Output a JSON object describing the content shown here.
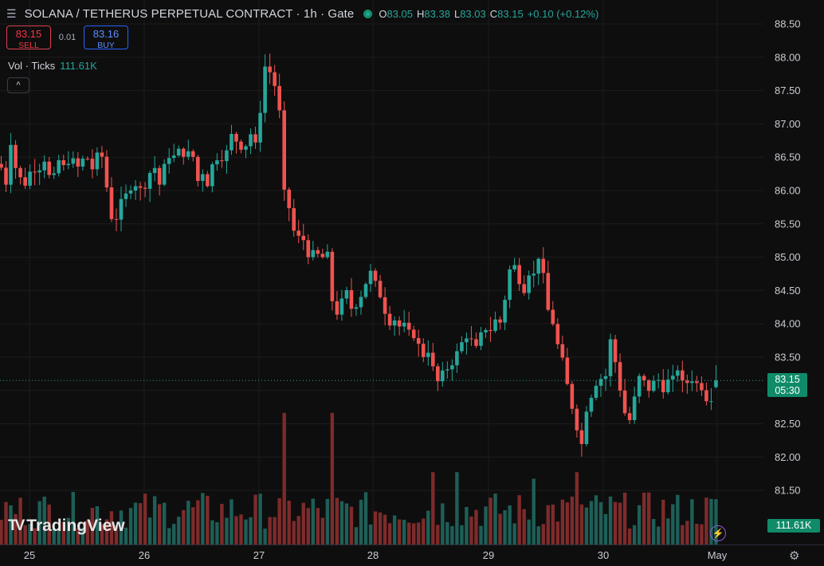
{
  "header": {
    "menu_icon": "menu-icon",
    "title": "SOLANA / TETHERUS PERPETUAL CONTRACT · 1h · Gate",
    "ohlc": [
      {
        "k": "O",
        "v": "83.05"
      },
      {
        "k": "H",
        "v": "83.38"
      },
      {
        "k": "L",
        "v": "83.03"
      },
      {
        "k": "C",
        "v": "83.15"
      }
    ],
    "change": "+0.10 (+0.12%)"
  },
  "trade": {
    "sell_price": "83.15",
    "sell_label": "SELL",
    "spread": "0.01",
    "buy_price": "83.16",
    "buy_label": "BUY"
  },
  "volume": {
    "label": "Vol · Ticks",
    "value": "111.61K"
  },
  "collapse_label": "^",
  "logo_text": "TradingView",
  "price_label": {
    "price": "83.15",
    "countdown": "05:30"
  },
  "volume_label": "111.61K",
  "colors": {
    "up": "#26a69a",
    "down": "#ef5350",
    "vol_up": "#1e5f57",
    "vol_down": "#7e2b2b",
    "background": "#0e0e0e",
    "grid": "#1c1c1c"
  },
  "chart_data": {
    "type": "candlestick",
    "interval": "1h",
    "y_ticks": [
      "88.50",
      "88.00",
      "87.50",
      "87.00",
      "86.50",
      "86.00",
      "85.50",
      "85.00",
      "84.50",
      "84.00",
      "83.50",
      "83.00",
      "82.50",
      "82.00",
      "81.50"
    ],
    "x_ticks": [
      "25",
      "26",
      "27",
      "28",
      "29",
      "30",
      "May"
    ],
    "ylim": [
      81.2,
      88.6
    ],
    "current_price": 83.15,
    "last_candle": {
      "o": 83.05,
      "h": 83.38,
      "l": 83.03,
      "c": 83.15
    },
    "close_path": [
      [
        0,
        86.4
      ],
      [
        8,
        86.1
      ],
      [
        12,
        86.85
      ],
      [
        18,
        86.4
      ],
      [
        24,
        86.2
      ],
      [
        32,
        86.1
      ],
      [
        40,
        86.35
      ],
      [
        48,
        86.3
      ],
      [
        55,
        86.5
      ],
      [
        62,
        86.2
      ],
      [
        70,
        86.2
      ],
      [
        76,
        86.6
      ],
      [
        82,
        86.2
      ],
      [
        88,
        86.6
      ],
      [
        95,
        86.3
      ],
      [
        101,
        86.4
      ],
      [
        108,
        86.55
      ],
      [
        115,
        86.3
      ],
      [
        121,
        86.5
      ],
      [
        127,
        86.6
      ],
      [
        131,
        86.2
      ],
      [
        136,
        85.95
      ],
      [
        140,
        85.6
      ],
      [
        145,
        85.55
      ],
      [
        151,
        85.8
      ],
      [
        157,
        85.9
      ],
      [
        163,
        86.05
      ],
      [
        170,
        86.1
      ],
      [
        177,
        86.0
      ],
      [
        183,
        86.1
      ],
      [
        189,
        86.3
      ],
      [
        195,
        86.35
      ],
      [
        201,
        86.05
      ],
      [
        207,
        86.4
      ],
      [
        213,
        86.55
      ],
      [
        219,
        86.5
      ],
      [
        225,
        86.6
      ],
      [
        231,
        86.55
      ],
      [
        237,
        86.55
      ],
      [
        243,
        86.5
      ],
      [
        249,
        86.1
      ],
      [
        255,
        86.3
      ],
      [
        262,
        86.05
      ],
      [
        268,
        86.5
      ],
      [
        274,
        86.5
      ],
      [
        280,
        86.5
      ],
      [
        286,
        86.6
      ],
      [
        292,
        86.9
      ],
      [
        298,
        86.7
      ],
      [
        304,
        86.65
      ],
      [
        310,
        86.7
      ],
      [
        316,
        86.9
      ],
      [
        322,
        86.6
      ],
      [
        328,
        87.4
      ],
      [
        333,
        87.9
      ],
      [
        338,
        87.8
      ],
      [
        344,
        87.6
      ],
      [
        350,
        87.4
      ],
      [
        354,
        86.0
      ],
      [
        360,
        85.9
      ],
      [
        366,
        85.55
      ],
      [
        372,
        85.2
      ],
      [
        378,
        85.4
      ],
      [
        384,
        85.1
      ],
      [
        390,
        85.0
      ],
      [
        396,
        85.1
      ],
      [
        402,
        84.95
      ],
      [
        408,
        85.05
      ],
      [
        414,
        85.0
      ],
      [
        418,
        84.1
      ],
      [
        425,
        84.2
      ],
      [
        431,
        84.4
      ],
      [
        437,
        84.5
      ],
      [
        443,
        84.1
      ],
      [
        449,
        84.4
      ],
      [
        455,
        84.45
      ],
      [
        461,
        84.7
      ],
      [
        467,
        84.8
      ],
      [
        473,
        84.5
      ],
      [
        479,
        84.4
      ],
      [
        485,
        84.1
      ],
      [
        491,
        84.0
      ],
      [
        497,
        84.1
      ],
      [
        503,
        83.9
      ],
      [
        509,
        84.0
      ],
      [
        515,
        83.8
      ],
      [
        521,
        83.85
      ],
      [
        527,
        83.6
      ],
      [
        533,
        83.5
      ],
      [
        539,
        83.65
      ],
      [
        545,
        83.2
      ],
      [
        551,
        83.1
      ],
      [
        557,
        83.3
      ],
      [
        563,
        83.35
      ],
      [
        569,
        83.45
      ],
      [
        575,
        83.6
      ],
      [
        581,
        83.75
      ],
      [
        587,
        83.85
      ],
      [
        593,
        83.7
      ],
      [
        599,
        83.6
      ],
      [
        605,
        83.9
      ],
      [
        611,
        83.95
      ],
      [
        617,
        83.9
      ],
      [
        623,
        84.1
      ],
      [
        629,
        84.0
      ],
      [
        635,
        84.5
      ],
      [
        641,
        84.9
      ],
      [
        647,
        84.85
      ],
      [
        653,
        84.6
      ],
      [
        659,
        84.5
      ],
      [
        665,
        84.85
      ],
      [
        671,
        84.7
      ],
      [
        677,
        85.1
      ],
      [
        683,
        84.6
      ],
      [
        689,
        84.1
      ],
      [
        695,
        84.0
      ],
      [
        701,
        83.6
      ],
      [
        707,
        83.4
      ],
      [
        713,
        83.0
      ],
      [
        719,
        82.7
      ],
      [
        725,
        82.4
      ],
      [
        729,
        82.1
      ],
      [
        735,
        82.7
      ],
      [
        741,
        82.9
      ],
      [
        747,
        83.1
      ],
      [
        753,
        83.2
      ],
      [
        759,
        83.1
      ],
      [
        765,
        83.8
      ],
      [
        771,
        83.5
      ],
      [
        777,
        83.1
      ],
      [
        783,
        82.7
      ],
      [
        789,
        82.5
      ],
      [
        795,
        82.8
      ],
      [
        801,
        83.2
      ],
      [
        807,
        83.15
      ],
      [
        813,
        83.0
      ],
      [
        819,
        83.1
      ],
      [
        825,
        83.2
      ],
      [
        831,
        83.0
      ],
      [
        837,
        83.15
      ],
      [
        843,
        83.1
      ],
      [
        849,
        83.4
      ],
      [
        855,
        83.1
      ],
      [
        861,
        83.1
      ],
      [
        867,
        83.2
      ],
      [
        873,
        83.1
      ],
      [
        879,
        83.1
      ],
      [
        885,
        82.9
      ],
      [
        891,
        82.85
      ],
      [
        897,
        83.05
      ],
      [
        903,
        83.15
      ]
    ],
    "volume_peaks": [
      {
        "x": 355,
        "rel": 1.0,
        "dir": "down"
      },
      {
        "x": 415,
        "rel": 1.0,
        "dir": "down"
      },
      {
        "x": 546,
        "rel": 0.55,
        "dir": "down"
      },
      {
        "x": 574,
        "rel": 0.55,
        "dir": "down"
      },
      {
        "x": 670,
        "rel": 0.5,
        "dir": "down"
      },
      {
        "x": 722,
        "rel": 0.55,
        "dir": "down"
      }
    ]
  }
}
